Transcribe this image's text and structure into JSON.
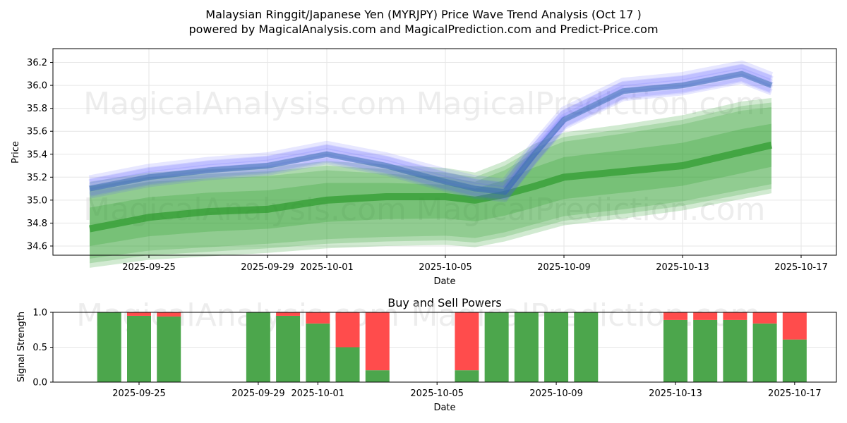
{
  "chart_data": [
    {
      "type": "area",
      "title": "Malaysian Ringgit/Japanese Yen (MYRJPY) Price Wave Trend Analysis (Oct 17 )",
      "subtitle": "powered by MagicalAnalysis.com and MagicalPrediction.com and Predict-Price.com",
      "xlabel": "Date",
      "ylabel": "Price",
      "ylim": [
        34.52,
        36.32
      ],
      "yticks": [
        "34.6",
        "34.8",
        "35.0",
        "35.2",
        "35.4",
        "35.6",
        "35.8",
        "36.0",
        "36.2"
      ],
      "ytick_values": [
        34.6,
        34.8,
        35.0,
        35.2,
        35.4,
        35.6,
        35.8,
        36.0,
        36.2
      ],
      "xlim_days": [
        -4.0,
        21.3
      ],
      "xticks": [
        "2025-09-25",
        "2025-09-29",
        "2025-10-01",
        "2025-10-05",
        "2025-10-09",
        "2025-10-13",
        "2025-10-17"
      ],
      "xtick_days": [
        0,
        4,
        6,
        10,
        14,
        18,
        22
      ],
      "x_days": [
        -2,
        0,
        2,
        4,
        6,
        8,
        10,
        11,
        12,
        13,
        14,
        16,
        18,
        20,
        21
      ],
      "series": [
        {
          "name": "price-wave (blue)",
          "values": [
            35.1,
            35.2,
            35.26,
            35.3,
            35.4,
            35.3,
            35.16,
            35.1,
            35.07,
            35.4,
            35.7,
            35.95,
            36.0,
            36.1,
            36.0
          ]
        },
        {
          "name": "trend-center (green)",
          "values": [
            34.75,
            34.85,
            34.9,
            34.92,
            35.0,
            35.03,
            35.03,
            35.0,
            35.05,
            35.12,
            35.2,
            35.25,
            35.3,
            35.42,
            35.48
          ]
        },
        {
          "name": "trend-upper (green)",
          "values": [
            35.12,
            35.2,
            35.23,
            35.25,
            35.3,
            35.27,
            35.24,
            35.2,
            35.3,
            35.45,
            35.55,
            35.62,
            35.7,
            35.82,
            35.85
          ]
        },
        {
          "name": "trend-lower (green)",
          "values": [
            34.45,
            34.52,
            34.55,
            34.58,
            34.62,
            34.64,
            34.65,
            34.63,
            34.68,
            34.75,
            34.82,
            34.88,
            34.95,
            35.05,
            35.1
          ]
        }
      ],
      "watermarks": [
        "MagicalAnalysis.com",
        "MagicalPrediction.com",
        "MagicalAnalysis.com",
        "MagicalPrediction.com"
      ]
    },
    {
      "type": "bar",
      "title": "Buy and Sell Powers",
      "xlabel": "Date",
      "ylabel": "Signal Strength",
      "ylim": [
        0,
        1.0
      ],
      "yticks": [
        "0.0",
        "0.5",
        "1.0"
      ],
      "ytick_values": [
        0.0,
        0.5,
        1.0
      ],
      "xlim_days": [
        -2.0,
        22.65
      ],
      "xticks": [
        "2025-09-25",
        "2025-09-29",
        "2025-10-01",
        "2025-10-05",
        "2025-10-09",
        "2025-10-13",
        "2025-10-17"
      ],
      "xtick_days": [
        0,
        4,
        6,
        10,
        14,
        18,
        22
      ],
      "bar_days": [
        -1,
        0,
        1,
        4,
        5,
        6,
        7,
        8,
        11,
        12,
        13,
        14,
        15,
        18,
        19,
        20,
        21,
        22
      ],
      "series": [
        {
          "name": "buy",
          "color": "#4ca64c",
          "values": [
            1.0,
            0.95,
            0.94,
            1.0,
            0.95,
            0.84,
            0.5,
            0.17,
            0.17,
            1.0,
            1.0,
            1.0,
            1.0,
            0.89,
            0.89,
            0.89,
            0.84,
            0.61
          ]
        },
        {
          "name": "sell",
          "color": "#ff4c4c",
          "values": [
            0.0,
            0.05,
            0.06,
            0.0,
            0.05,
            0.16,
            0.5,
            0.83,
            0.83,
            0.0,
            0.0,
            0.0,
            0.0,
            0.11,
            0.11,
            0.11,
            0.16,
            0.39
          ]
        }
      ],
      "watermarks": [
        "MagicalAnalysis.com",
        "MagicalPrediction.com"
      ]
    }
  ]
}
